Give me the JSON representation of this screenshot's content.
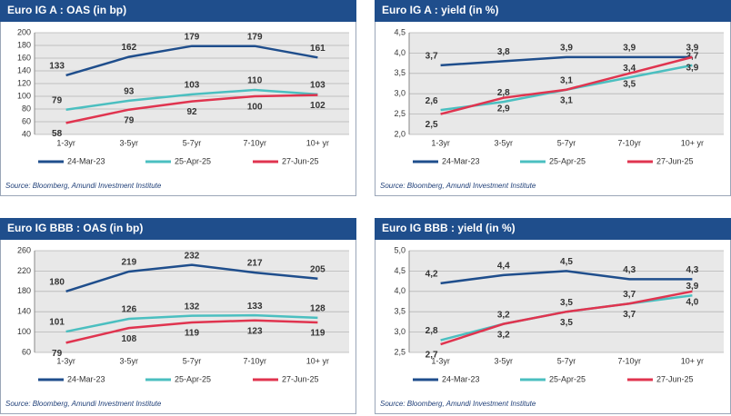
{
  "chart_data": [
    {
      "type": "line",
      "title": "Euro IG A : OAS (in bp)",
      "source": "Source: Bloomberg, Amundi Investment Institute",
      "categories": [
        "1-3yr",
        "3-5yr",
        "5-7yr",
        "7-10yr",
        "10+ yr"
      ],
      "ylim": [
        40,
        200
      ],
      "yticks": [
        40,
        60,
        80,
        100,
        120,
        140,
        160,
        180,
        200
      ],
      "grid": true,
      "series": [
        {
          "name": "24-Mar-23",
          "color": "#1f4e8c",
          "values": [
            133,
            162,
            179,
            179,
            161
          ]
        },
        {
          "name": "25-Apr-25",
          "color": "#4bbfc0",
          "values": [
            79,
            93,
            103,
            110,
            103
          ]
        },
        {
          "name": "27-Jun-25",
          "color": "#e0344f",
          "values": [
            58,
            79,
            92,
            100,
            102
          ]
        }
      ]
    },
    {
      "type": "line",
      "title": "Euro IG A : yield (in %)",
      "source": "Source: Bloomberg, Amundi Investment Institute",
      "categories": [
        "1-3yr",
        "3-5yr",
        "5-7yr",
        "7-10yr",
        "10+ yr"
      ],
      "ylim": [
        2,
        4.5
      ],
      "yticks": [
        {
          "value": 2,
          "label": "2,0"
        },
        {
          "value": 2.5,
          "label": "2,5"
        },
        {
          "value": 3,
          "label": "3,0"
        },
        {
          "value": 3.5,
          "label": "3,5"
        },
        {
          "value": 4,
          "label": "4,0"
        },
        {
          "value": 4.5,
          "label": "4,5"
        }
      ],
      "grid": true,
      "series": [
        {
          "name": "24-Mar-23",
          "color": "#1f4e8c",
          "values": [
            3.7,
            3.8,
            3.9,
            3.9,
            3.9
          ],
          "value_labels": [
            "3,7",
            "3,8",
            "3,9",
            "3,9",
            "3,9"
          ]
        },
        {
          "name": "25-Apr-25",
          "color": "#4bbfc0",
          "values": [
            2.6,
            2.8,
            3.1,
            3.4,
            3.7
          ],
          "value_labels": [
            "2,6",
            "2,8",
            "3,1",
            "3,4",
            "3,7"
          ]
        },
        {
          "name": "27-Jun-25",
          "color": "#e0344f",
          "values": [
            2.5,
            2.9,
            3.1,
            3.5,
            3.9
          ],
          "value_labels": [
            "2,5",
            "2,9",
            "3,1",
            "3,5",
            "3,9"
          ]
        }
      ]
    },
    {
      "type": "line",
      "title": "Euro IG BBB : OAS (in bp)",
      "source": "Source: Bloomberg, Amundi Investment Institute",
      "categories": [
        "1-3yr",
        "3-5yr",
        "5-7yr",
        "7-10yr",
        "10+ yr"
      ],
      "ylim": [
        60,
        260
      ],
      "yticks": [
        60,
        100,
        140,
        180,
        220,
        260
      ],
      "grid": true,
      "series": [
        {
          "name": "24-Mar-23",
          "color": "#1f4e8c",
          "values": [
            180,
            219,
            232,
            217,
            205
          ]
        },
        {
          "name": "25-Apr-25",
          "color": "#4bbfc0",
          "values": [
            101,
            126,
            132,
            133,
            128
          ]
        },
        {
          "name": "27-Jun-25",
          "color": "#e0344f",
          "values": [
            79,
            108,
            119,
            123,
            119
          ]
        }
      ]
    },
    {
      "type": "line",
      "title": "Euro IG BBB : yield (in %)",
      "source": "Source: Bloomberg, Amundi Investment Institute",
      "categories": [
        "1-3yr",
        "3-5yr",
        "5-7yr",
        "7-10yr",
        "10+ yr"
      ],
      "ylim": [
        2.5,
        5
      ],
      "yticks": [
        {
          "value": 2.5,
          "label": "2,5"
        },
        {
          "value": 3,
          "label": "3,0"
        },
        {
          "value": 3.5,
          "label": "3,5"
        },
        {
          "value": 4,
          "label": "4,0"
        },
        {
          "value": 4.5,
          "label": "4,5"
        },
        {
          "value": 5,
          "label": "5,0"
        }
      ],
      "grid": true,
      "series": [
        {
          "name": "24-Mar-23",
          "color": "#1f4e8c",
          "values": [
            4.2,
            4.4,
            4.5,
            4.3,
            4.3
          ],
          "value_labels": [
            "4,2",
            "4,4",
            "4,5",
            "4,3",
            "4,3"
          ]
        },
        {
          "name": "25-Apr-25",
          "color": "#4bbfc0",
          "values": [
            2.8,
            3.2,
            3.5,
            3.7,
            3.9
          ],
          "value_labels": [
            "2,8",
            "3,2",
            "3,5",
            "3,7",
            "3,9"
          ]
        },
        {
          "name": "27-Jun-25",
          "color": "#e0344f",
          "values": [
            2.7,
            3.2,
            3.5,
            3.7,
            4.0
          ],
          "value_labels": [
            "2,7",
            "3,2",
            "3,5",
            "3,7",
            "4,0"
          ]
        }
      ]
    }
  ]
}
